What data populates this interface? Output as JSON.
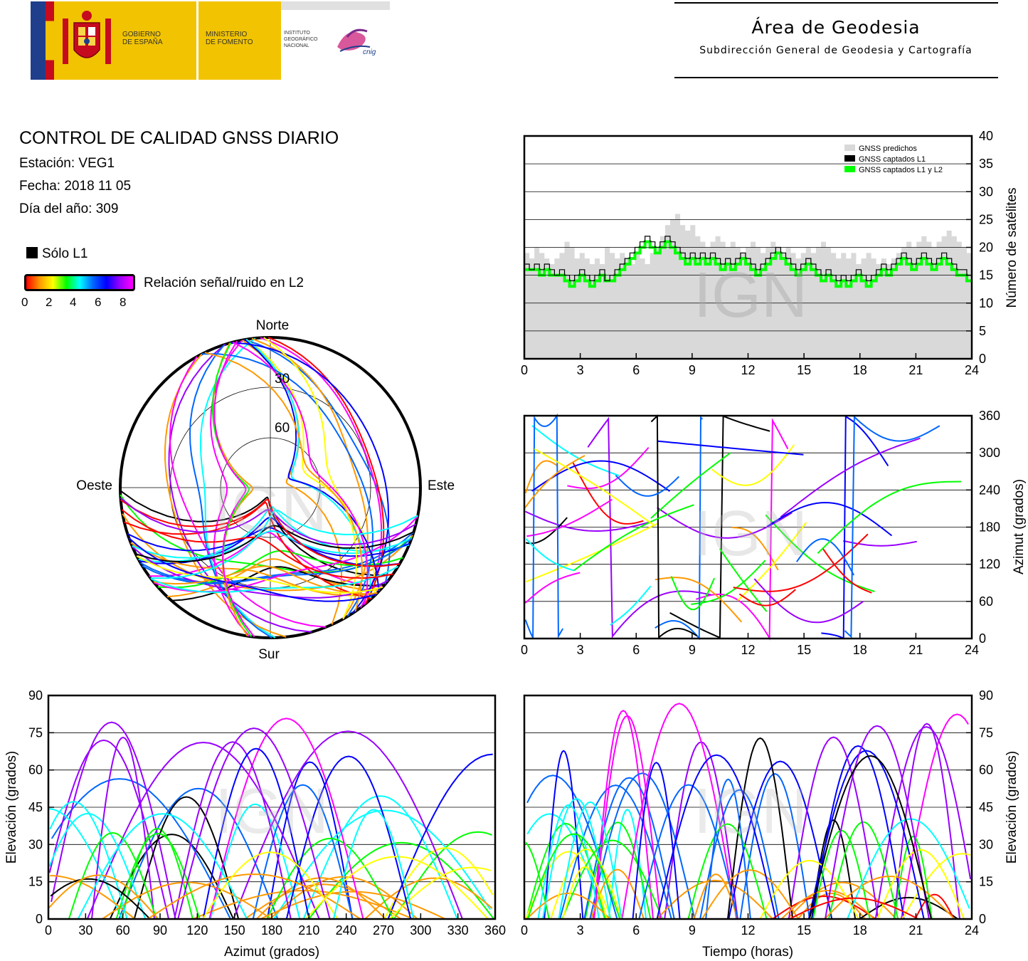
{
  "header": {
    "gov_line1": "GOBIERNO",
    "gov_line2": "DE ESPAÑA",
    "min_line1": "MINISTERIO",
    "min_line2": "DE FOMENTO",
    "ign_line1": "INSTITUTO",
    "ign_line2": "GEOGRÁFICO",
    "ign_line3": "NACIONAL",
    "cnig": "cnig",
    "area_title": "Área de Geodesia",
    "area_subtitle": "Subdirección General de Geodesia y Cartografía",
    "colors": {
      "flag_red": "#c60b1e",
      "flag_yellow": "#f2c300",
      "eu_blue": "#1f3f8c"
    }
  },
  "info": {
    "title": "CONTROL DE CALIDAD GNSS DIARIO",
    "station": "Estación: VEG1",
    "date": "Fecha: 2018 11 05",
    "doy": "Día del año: 309"
  },
  "legend": {
    "l1_only": "Sólo L1",
    "snr_label": "Relación señal/ruido en L2",
    "snr_ticks": [
      "0",
      "2",
      "4",
      "6",
      "8"
    ],
    "snr_colors": [
      "#ff0000",
      "#ff9900",
      "#ffff00",
      "#00ff00",
      "#00ffff",
      "#0066ff",
      "#0000ff",
      "#9900ff",
      "#ff00ff"
    ]
  },
  "watermark": "IGN",
  "chart_data": [
    {
      "id": "skyplot",
      "type": "scatter",
      "title": "",
      "directions": {
        "north": "Norte",
        "south": "Sur",
        "east": "Este",
        "west": "Oeste"
      },
      "ring_labels": [
        "30",
        "60"
      ],
      "rings_elevation_deg": [
        30,
        60
      ],
      "note": "polar sky plot of satellite tracks colored by L2 SNR"
    },
    {
      "id": "satellites",
      "type": "area",
      "xlabel": "",
      "ylabel": "Número de satélites",
      "xlim": [
        0,
        24
      ],
      "ylim": [
        0,
        40
      ],
      "x_ticks": [
        "0",
        "3",
        "6",
        "9",
        "12",
        "15",
        "18",
        "21",
        "24"
      ],
      "y_ticks": [
        "0",
        "5",
        "10",
        "15",
        "20",
        "25",
        "30",
        "35",
        "40"
      ],
      "grid": true,
      "legend_position": "top-right",
      "series": [
        {
          "name": "GNSS predichos",
          "color": "#d9d9d9",
          "values": [
            19,
            18,
            20,
            19,
            18,
            17,
            18,
            19,
            21,
            20,
            18,
            19,
            18,
            17,
            18,
            17,
            20,
            19,
            18,
            19,
            18,
            17,
            19,
            18,
            17,
            19,
            20,
            22,
            24,
            25,
            26,
            24,
            23,
            24,
            22,
            21,
            20,
            21,
            22,
            21,
            20,
            21,
            20,
            19,
            20,
            21,
            20,
            19,
            20,
            21,
            20,
            19,
            20,
            19,
            18,
            19,
            20,
            19,
            20,
            21,
            20,
            19,
            18,
            19,
            18,
            19,
            17,
            18,
            19,
            18,
            17,
            18,
            17,
            18,
            19,
            20,
            21,
            20,
            21,
            22,
            21,
            20,
            21,
            22,
            23,
            22,
            21,
            20,
            19
          ]
        },
        {
          "name": "GNSS captados L1",
          "color": "#000000",
          "values": [
            17,
            16,
            17,
            16,
            17,
            16,
            15,
            16,
            15,
            14,
            15,
            16,
            15,
            14,
            15,
            16,
            14,
            15,
            16,
            17,
            18,
            19,
            20,
            21,
            22,
            21,
            20,
            21,
            22,
            21,
            20,
            19,
            18,
            19,
            18,
            19,
            18,
            19,
            18,
            17,
            18,
            17,
            18,
            19,
            18,
            17,
            16,
            17,
            18,
            19,
            20,
            19,
            18,
            17,
            16,
            17,
            18,
            17,
            16,
            15,
            16,
            15,
            14,
            15,
            14,
            15,
            16,
            15,
            14,
            15,
            16,
            17,
            16,
            17,
            18,
            19,
            18,
            17,
            18,
            19,
            18,
            17,
            18,
            19,
            18,
            17,
            16,
            16,
            15
          ]
        },
        {
          "name": "GNSS captados L1 y L2",
          "color": "#00ff00",
          "values": [
            16,
            16,
            16,
            15,
            16,
            15,
            15,
            15,
            14,
            13,
            14,
            15,
            14,
            13,
            14,
            15,
            14,
            14,
            15,
            16,
            17,
            18,
            19,
            20,
            21,
            20,
            19,
            20,
            21,
            20,
            19,
            18,
            17,
            18,
            17,
            18,
            17,
            18,
            17,
            16,
            17,
            16,
            17,
            18,
            17,
            16,
            15,
            16,
            17,
            18,
            19,
            18,
            17,
            16,
            15,
            16,
            17,
            16,
            15,
            14,
            15,
            14,
            13,
            14,
            13,
            14,
            15,
            14,
            13,
            14,
            15,
            16,
            15,
            16,
            17,
            18,
            17,
            16,
            17,
            18,
            17,
            16,
            17,
            18,
            17,
            16,
            15,
            15,
            14
          ]
        }
      ]
    },
    {
      "id": "azimuth_time",
      "type": "scatter",
      "xlabel": "",
      "ylabel": "Azimut (grados)",
      "xlim": [
        0,
        24
      ],
      "ylim": [
        0,
        360
      ],
      "x_ticks": [
        "0",
        "3",
        "6",
        "9",
        "12",
        "15",
        "18",
        "21",
        "24"
      ],
      "y_ticks": [
        "0",
        "60",
        "120",
        "180",
        "240",
        "300",
        "360"
      ],
      "grid": true
    },
    {
      "id": "elevation_azimuth",
      "type": "scatter",
      "xlabel": "Azimut (grados)",
      "ylabel": "Elevación (grados)",
      "xlim": [
        0,
        360
      ],
      "ylim": [
        0,
        90
      ],
      "x_ticks": [
        "0",
        "30",
        "60",
        "90",
        "120",
        "150",
        "180",
        "210",
        "240",
        "270",
        "300",
        "330",
        "360"
      ],
      "y_ticks": [
        "0",
        "15",
        "30",
        "45",
        "60",
        "75",
        "90"
      ],
      "grid": true
    },
    {
      "id": "elevation_time",
      "type": "scatter",
      "xlabel": "Tiempo (horas)",
      "ylabel": "Elevación (grados)",
      "xlim": [
        0,
        24
      ],
      "ylim": [
        0,
        90
      ],
      "x_ticks": [
        "0",
        "3",
        "6",
        "9",
        "12",
        "15",
        "18",
        "21",
        "24"
      ],
      "y_ticks": [
        "0",
        "15",
        "30",
        "45",
        "60",
        "75",
        "90"
      ],
      "grid": true
    }
  ]
}
